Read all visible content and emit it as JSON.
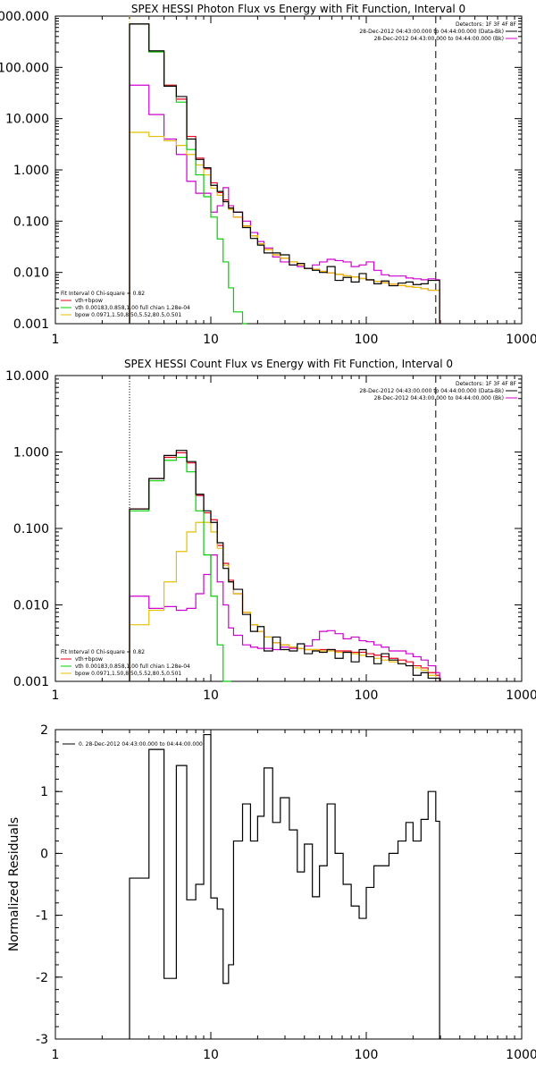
{
  "colors": {
    "total": "#000000",
    "vth_bpow": "#e8001e",
    "vth": "#00d000",
    "bpow": "#e6c000",
    "data": "#000000",
    "background": "#d000d0",
    "boundary": "#000000"
  },
  "chart_data": [
    {
      "type": "line",
      "title": "SPEX HESSI Photon Flux vs Energy with Fit Function, Interval 0",
      "xlabel": "",
      "ylabel": "",
      "xscale": "log",
      "yscale": "log",
      "xlim": [
        1,
        1000
      ],
      "ylim": [
        0.001,
        1000
      ],
      "xticks": [
        1,
        10,
        100,
        1000
      ],
      "xtick_labels": [
        "1",
        "10",
        "100",
        "1000"
      ],
      "yticks": [
        0.001,
        0.01,
        0.1,
        1,
        10,
        100,
        1000
      ],
      "ytick_labels": [
        "0.001",
        "0.010",
        "0.100",
        "1.000",
        "10.000",
        "100.000",
        "1000.000"
      ],
      "header": {
        "detectors": "Detectors: 1F 3F 4F 8F",
        "rows": [
          {
            "text": "28-Dec-2012 04:43:00.000 to 04:44:00.000 (Data-Bk)",
            "color_key": "data"
          },
          {
            "text": "28-Dec-2012 04:43:00.000 to 04:44:00.000 (Bk)",
            "color_key": "background"
          }
        ]
      },
      "legend": {
        "position": "lower-left",
        "heading": "Fit Interval 0   Chi-square = 0.82",
        "entries": [
          {
            "text": "vth+bpow",
            "color_key": "vth_bpow"
          },
          {
            "text": "vth 0.00183,0.858,1.00  full chian 1.28e-04",
            "color_key": "vth"
          },
          {
            "text": "bpow 0.0971,1.50,8.50,5.52,80.5,0.501",
            "color_key": "bpow"
          }
        ]
      },
      "vlines": [
        {
          "x": 3,
          "style": "dotted",
          "color_key": "bpow"
        },
        {
          "x": 280,
          "style": "dashed",
          "color_key": "boundary"
        }
      ],
      "series": [
        {
          "name": "vth+bpow",
          "color_key": "vth_bpow",
          "x": [
            3,
            4,
            5,
            6,
            7,
            8,
            9,
            10,
            11,
            12,
            13,
            14,
            16,
            18,
            20,
            22,
            25,
            28,
            32,
            36,
            40,
            45,
            50,
            56,
            63,
            71,
            80,
            90,
            100,
            112,
            125,
            140,
            160,
            180,
            200,
            225,
            250,
            280
          ],
          "y": [
            700,
            200,
            45,
            24,
            4.5,
            1.7,
            1.05,
            0.56,
            0.36,
            0.26,
            0.18,
            0.12,
            0.081,
            0.052,
            0.036,
            0.028,
            0.022,
            0.019,
            0.016,
            0.014,
            0.012,
            0.0115,
            0.0105,
            0.0098,
            0.0092,
            0.0086,
            0.0081,
            0.0076,
            0.0071,
            0.0067,
            0.0063,
            0.0059,
            0.0056,
            0.0053,
            0.0051,
            0.0048,
            0.0045,
            0.0045
          ]
        },
        {
          "name": "data",
          "color_key": "data",
          "x": [
            3,
            4,
            5,
            6,
            7,
            8,
            9,
            10,
            11,
            12,
            13,
            14,
            16,
            18,
            20,
            22,
            25,
            28,
            32,
            36,
            40,
            45,
            50,
            56,
            63,
            71,
            80,
            90,
            100,
            112,
            125,
            140,
            160,
            180,
            200,
            225,
            250,
            280
          ],
          "y": [
            700,
            210,
            43,
            27,
            4.0,
            1.6,
            1.1,
            0.5,
            0.38,
            0.24,
            0.18,
            0.15,
            0.075,
            0.046,
            0.034,
            0.024,
            0.024,
            0.022,
            0.014,
            0.015,
            0.012,
            0.011,
            0.01,
            0.013,
            0.007,
            0.008,
            0.0065,
            0.0095,
            0.0072,
            0.006,
            0.0068,
            0.0055,
            0.0062,
            0.0065,
            0.0058,
            0.006,
            0.007,
            0.007
          ]
        },
        {
          "name": "vth",
          "color_key": "vth",
          "x": [
            3,
            4,
            5,
            6,
            7,
            8,
            9,
            10,
            11,
            12,
            13,
            14,
            16
          ],
          "y": [
            700,
            200,
            43,
            21,
            2.5,
            0.8,
            0.3,
            0.12,
            0.045,
            0.016,
            0.005,
            0.0017,
            0.0005
          ]
        },
        {
          "name": "bpow",
          "color_key": "bpow",
          "x": [
            3,
            4,
            5,
            6,
            7,
            8,
            9,
            10,
            11,
            12,
            13,
            14,
            16,
            18,
            20,
            22,
            25,
            28,
            32,
            36,
            40,
            45,
            50,
            56,
            63,
            71,
            80,
            90,
            100,
            112,
            125,
            140,
            160,
            180,
            200,
            225,
            250,
            280
          ],
          "y": [
            5.4,
            4.5,
            3.7,
            3.0,
            2.0,
            1.25,
            0.8,
            0.44,
            0.32,
            0.24,
            0.17,
            0.12,
            0.08,
            0.052,
            0.036,
            0.028,
            0.022,
            0.019,
            0.016,
            0.014,
            0.012,
            0.0115,
            0.0105,
            0.0098,
            0.0092,
            0.0086,
            0.0081,
            0.0076,
            0.0071,
            0.0067,
            0.0063,
            0.0059,
            0.0056,
            0.0053,
            0.0051,
            0.0048,
            0.0045,
            0.0045
          ]
        },
        {
          "name": "background",
          "color_key": "background",
          "x": [
            3,
            4,
            5,
            6,
            7,
            8,
            9,
            10,
            11,
            12,
            13,
            14,
            16,
            18,
            20,
            22,
            25,
            28,
            32,
            36,
            40,
            45,
            50,
            56,
            63,
            71,
            80,
            90,
            100,
            112,
            125,
            140,
            160,
            180,
            200,
            225,
            250,
            280
          ],
          "y": [
            45,
            12,
            4.0,
            2.0,
            0.6,
            0.35,
            0.35,
            0.15,
            0.2,
            0.45,
            0.2,
            0.15,
            0.1,
            0.06,
            0.04,
            0.03,
            0.02,
            0.016,
            0.014,
            0.013,
            0.012,
            0.014,
            0.016,
            0.018,
            0.017,
            0.016,
            0.013,
            0.014,
            0.016,
            0.011,
            0.009,
            0.0085,
            0.0085,
            0.0078,
            0.0075,
            0.0072,
            0.0075,
            0.0072
          ]
        }
      ]
    },
    {
      "type": "line",
      "title": "SPEX HESSI Count Flux vs Energy with Fit Function, Interval 0",
      "xlabel": "",
      "ylabel": "",
      "xscale": "log",
      "yscale": "log",
      "xlim": [
        1,
        1000
      ],
      "ylim": [
        0.001,
        10
      ],
      "xticks": [
        1,
        10,
        100,
        1000
      ],
      "xtick_labels": [
        "1",
        "10",
        "100",
        "1000"
      ],
      "yticks": [
        0.001,
        0.01,
        0.1,
        1,
        10
      ],
      "ytick_labels": [
        "0.001",
        "0.010",
        "0.100",
        "1.000",
        "10.000"
      ],
      "header": {
        "detectors": "Detectors: 1F 3F 4F 8F",
        "rows": [
          {
            "text": "28-Dec-2012 04:43:00.000 to 04:44:00.000 (Data-Bk)",
            "color_key": "data"
          },
          {
            "text": "28-Dec-2012 04:43:00.000 to 04:44:00.000 (Bk)",
            "color_key": "background"
          }
        ]
      },
      "legend": {
        "position": "lower-left",
        "heading": "Fit Interval 0   Chi-square = 0.82",
        "entries": [
          {
            "text": "vth+bpow",
            "color_key": "vth_bpow"
          },
          {
            "text": "vth 0.00183,0.858,1.00  full chian 1.28e-04",
            "color_key": "vth"
          },
          {
            "text": "bpow 0.0971,1.50,8.50,5.52,80.5,0.501",
            "color_key": "bpow"
          }
        ]
      },
      "vlines": [
        {
          "x": 3,
          "style": "dotted",
          "color_key": "boundary"
        },
        {
          "x": 280,
          "style": "dashed",
          "color_key": "boundary"
        }
      ],
      "series": [
        {
          "name": "vth+bpow",
          "color_key": "vth_bpow",
          "x": [
            3,
            4,
            5,
            6,
            7,
            8,
            9,
            10,
            11,
            12,
            13,
            14,
            16,
            18,
            20,
            22,
            25,
            28,
            32,
            36,
            40,
            45,
            50,
            56,
            63,
            71,
            80,
            90,
            100,
            112,
            125,
            140,
            160,
            180,
            200,
            225,
            250,
            280
          ],
          "y": [
            0.18,
            0.45,
            0.85,
            0.98,
            0.72,
            0.27,
            0.16,
            0.13,
            0.06,
            0.035,
            0.021,
            0.014,
            0.008,
            0.0055,
            0.0045,
            0.0038,
            0.0032,
            0.003,
            0.0028,
            0.0027,
            0.0026,
            0.0026,
            0.0026,
            0.0026,
            0.0025,
            0.0025,
            0.0024,
            0.0024,
            0.0023,
            0.0022,
            0.0021,
            0.002,
            0.0019,
            0.0018,
            0.0016,
            0.0015,
            0.0013,
            0.0012
          ]
        },
        {
          "name": "data",
          "color_key": "data",
          "x": [
            3,
            4,
            5,
            6,
            7,
            8,
            9,
            10,
            11,
            12,
            13,
            14,
            16,
            18,
            20,
            22,
            25,
            28,
            32,
            36,
            40,
            45,
            50,
            56,
            63,
            71,
            80,
            90,
            100,
            112,
            125,
            140,
            160,
            180,
            200,
            225,
            250,
            280
          ],
          "y": [
            0.18,
            0.45,
            0.9,
            1.05,
            0.75,
            0.28,
            0.17,
            0.12,
            0.065,
            0.03,
            0.02,
            0.016,
            0.0075,
            0.0045,
            0.0052,
            0.0025,
            0.0038,
            0.0026,
            0.0025,
            0.0031,
            0.0023,
            0.0025,
            0.0024,
            0.0026,
            0.002,
            0.0024,
            0.0018,
            0.0026,
            0.0021,
            0.0017,
            0.0023,
            0.0019,
            0.0017,
            0.0016,
            0.0012,
            0.0013,
            0.0011,
            0.0011
          ]
        },
        {
          "name": "vth",
          "color_key": "vth",
          "x": [
            3,
            4,
            5,
            6,
            7,
            8,
            9,
            10,
            11,
            12,
            13
          ],
          "y": [
            0.17,
            0.42,
            0.78,
            0.85,
            0.55,
            0.17,
            0.045,
            0.013,
            0.003,
            0.0009,
            0.0003
          ]
        },
        {
          "name": "bpow",
          "color_key": "bpow",
          "x": [
            3,
            4,
            5,
            6,
            7,
            8,
            9,
            10,
            11,
            12,
            13,
            14,
            16,
            18,
            20,
            22,
            25,
            28,
            32,
            36,
            40,
            45,
            50,
            56,
            63,
            71,
            80,
            90,
            100,
            112,
            125,
            140,
            160,
            180,
            200,
            225,
            250,
            280
          ],
          "y": [
            0.0055,
            0.0085,
            0.02,
            0.05,
            0.09,
            0.12,
            0.12,
            0.09,
            0.055,
            0.033,
            0.02,
            0.014,
            0.008,
            0.0055,
            0.0045,
            0.0038,
            0.0032,
            0.003,
            0.0028,
            0.0027,
            0.0026,
            0.0026,
            0.0025,
            0.0025,
            0.0024,
            0.0024,
            0.0023,
            0.0022,
            0.0021,
            0.002,
            0.0019,
            0.0018,
            0.0017,
            0.0016,
            0.0015,
            0.0014,
            0.0012,
            0.0011
          ]
        },
        {
          "name": "background",
          "color_key": "background",
          "x": [
            3,
            4,
            5,
            6,
            7,
            8,
            9,
            10,
            11,
            12,
            13,
            14,
            16,
            18,
            20,
            22,
            25,
            28,
            32,
            36,
            40,
            45,
            50,
            56,
            63,
            71,
            80,
            90,
            100,
            112,
            125,
            140,
            160,
            180,
            200,
            225,
            250,
            280
          ],
          "y": [
            0.013,
            0.009,
            0.0095,
            0.0085,
            0.009,
            0.014,
            0.025,
            0.045,
            0.02,
            0.01,
            0.005,
            0.004,
            0.003,
            0.0028,
            0.0027,
            0.0027,
            0.0026,
            0.0028,
            0.0027,
            0.0027,
            0.0029,
            0.0035,
            0.0045,
            0.0046,
            0.0042,
            0.0036,
            0.0038,
            0.0034,
            0.0033,
            0.003,
            0.0028,
            0.0025,
            0.0025,
            0.0023,
            0.0021,
            0.0019,
            0.0016,
            0.0013
          ]
        }
      ]
    },
    {
      "type": "line",
      "title": "",
      "xlabel": "",
      "ylabel": "Normalized Residuals",
      "xscale": "log",
      "yscale": "linear",
      "xlim": [
        1,
        1000
      ],
      "ylim": [
        -3,
        2
      ],
      "xticks": [
        1,
        10,
        100,
        1000
      ],
      "xtick_labels": [
        "1",
        "10",
        "100",
        "1000"
      ],
      "yticks": [
        -3,
        -2,
        -1,
        0,
        1,
        2
      ],
      "ytick_labels": [
        "-3",
        "-2",
        "-1",
        "0",
        "1",
        "2"
      ],
      "legend": {
        "position": "top-left",
        "entries": [
          {
            "text": "0. 28-Dec-2012 04:43:00.000 to 04:44:00.000",
            "color_key": "data"
          }
        ]
      },
      "series": [
        {
          "name": "0. 28-Dec-2012 04:43:00.000 to 04:44:00.000",
          "color_key": "data",
          "x": [
            3,
            4,
            5,
            6,
            7,
            8,
            9,
            10,
            11,
            12,
            13,
            14,
            16,
            18,
            20,
            22,
            25,
            28,
            32,
            36,
            40,
            45,
            50,
            56,
            63,
            71,
            80,
            90,
            100,
            112,
            125,
            140,
            160,
            180,
            200,
            225,
            250,
            280
          ],
          "y": [
            -0.4,
            1.68,
            -2.02,
            1.42,
            -0.75,
            -0.5,
            1.92,
            -0.72,
            -0.9,
            -2.1,
            -1.8,
            0.2,
            0.8,
            0.2,
            0.6,
            1.38,
            0.5,
            0.9,
            0.38,
            -0.3,
            0.15,
            -0.7,
            -0.2,
            0.8,
            0,
            -0.5,
            -0.85,
            -1.05,
            -0.55,
            -0.2,
            -0.2,
            0,
            0.2,
            0.5,
            0.2,
            0.55,
            1.0,
            0.52
          ]
        }
      ]
    }
  ]
}
